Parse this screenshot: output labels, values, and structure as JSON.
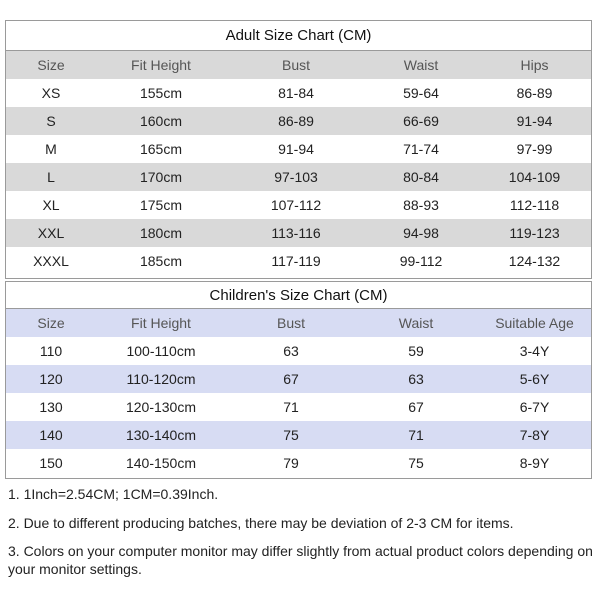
{
  "adult": {
    "title": "Adult Size Chart (CM)",
    "headers": [
      "Size",
      "Fit Height",
      "Bust",
      "Waist",
      "Hips"
    ],
    "rows": [
      [
        "XS",
        "155cm",
        "81-84",
        "59-64",
        "86-89"
      ],
      [
        "S",
        "160cm",
        "86-89",
        "66-69",
        "91-94"
      ],
      [
        "M",
        "165cm",
        "91-94",
        "71-74",
        "97-99"
      ],
      [
        "L",
        "170cm",
        "97-103",
        "80-84",
        "104-109"
      ],
      [
        "XL",
        "175cm",
        "107-112",
        "88-93",
        "112-118"
      ],
      [
        "XXL",
        "180cm",
        "113-116",
        "94-98",
        "119-123"
      ],
      [
        "XXXL",
        "185cm",
        "117-119",
        "99-112",
        "124-132"
      ]
    ]
  },
  "children": {
    "title": "Children's Size Chart (CM)",
    "headers": [
      "Size",
      "Fit Height",
      "Bust",
      "Waist",
      "Suitable Age"
    ],
    "rows": [
      [
        "110",
        "100-110cm",
        "63",
        "59",
        "3-4Y"
      ],
      [
        "120",
        "110-120cm",
        "67",
        "63",
        "5-6Y"
      ],
      [
        "130",
        "120-130cm",
        "71",
        "67",
        "6-7Y"
      ],
      [
        "140",
        "130-140cm",
        "75",
        "71",
        "7-8Y"
      ],
      [
        "150",
        "140-150cm",
        "79",
        "75",
        "8-9Y"
      ]
    ]
  },
  "notes": [
    "1. 1Inch=2.54CM; 1CM=0.39Inch.",
    "2. Due to different producing batches, there may be deviation of 2-3 CM for items.",
    "3. Colors on your computer monitor may differ slightly from actual product colors depending on your monitor settings."
  ]
}
